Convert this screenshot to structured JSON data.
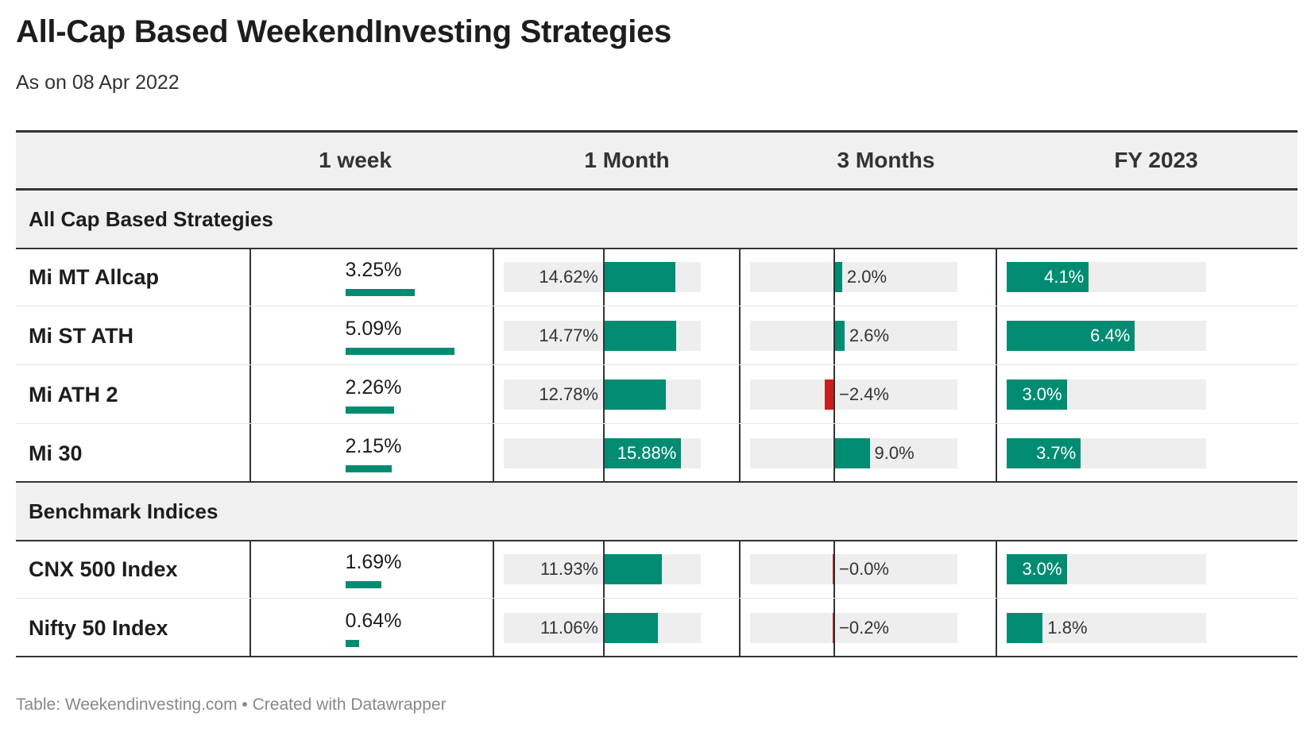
{
  "title": "All-Cap Based WeekendInvesting Strategies",
  "subtitle": "As on 08 Apr 2022",
  "footer": "Table: Weekendinvesting.com • Created with Datawrapper",
  "colors": {
    "positive": "#008c72",
    "negative": "#c71e1d",
    "track": "#eeeeee",
    "header_bg": "#f0f0f0",
    "rule": "#333333"
  },
  "chart_data": {
    "type": "table",
    "columns": [
      "",
      "1 week",
      "1 Month",
      "3 Months",
      "FY 2023"
    ],
    "groups": [
      {
        "label": "All Cap Based Strategies",
        "rows": [
          {
            "name": "Mi MT Allcap",
            "week": 3.25,
            "week_label": "3.25%",
            "month": 14.62,
            "month_label": "14.62%",
            "months3": 2.0,
            "months3_label": "2.0%",
            "fy": 4.1,
            "fy_label": "4.1%"
          },
          {
            "name": "Mi ST ATH",
            "week": 5.09,
            "week_label": "5.09%",
            "month": 14.77,
            "month_label": "14.77%",
            "months3": 2.6,
            "months3_label": "2.6%",
            "fy": 6.4,
            "fy_label": "6.4%"
          },
          {
            "name": "Mi ATH 2",
            "week": 2.26,
            "week_label": "2.26%",
            "month": 12.78,
            "month_label": "12.78%",
            "months3": -2.4,
            "months3_label": "−2.4%",
            "fy": 3.0,
            "fy_label": "3.0%"
          },
          {
            "name": "Mi 30",
            "week": 2.15,
            "week_label": "2.15%",
            "month": 15.88,
            "month_label": "15.88%",
            "months3": 9.0,
            "months3_label": "9.0%",
            "fy": 3.7,
            "fy_label": "3.7%"
          }
        ]
      },
      {
        "label": "Benchmark Indices",
        "rows": [
          {
            "name": "CNX 500 Index",
            "week": 1.69,
            "week_label": "1.69%",
            "month": 11.93,
            "month_label": "11.93%",
            "months3": -0.02,
            "months3_label": "−0.0%",
            "fy": 3.0,
            "fy_label": "3.0%"
          },
          {
            "name": "Nifty 50 Index",
            "week": 0.64,
            "week_label": "0.64%",
            "month": 11.06,
            "month_label": "11.06%",
            "months3": -0.2,
            "months3_label": "−0.2%",
            "fy": 1.8,
            "fy_label": "1.8%"
          }
        ]
      }
    ]
  }
}
